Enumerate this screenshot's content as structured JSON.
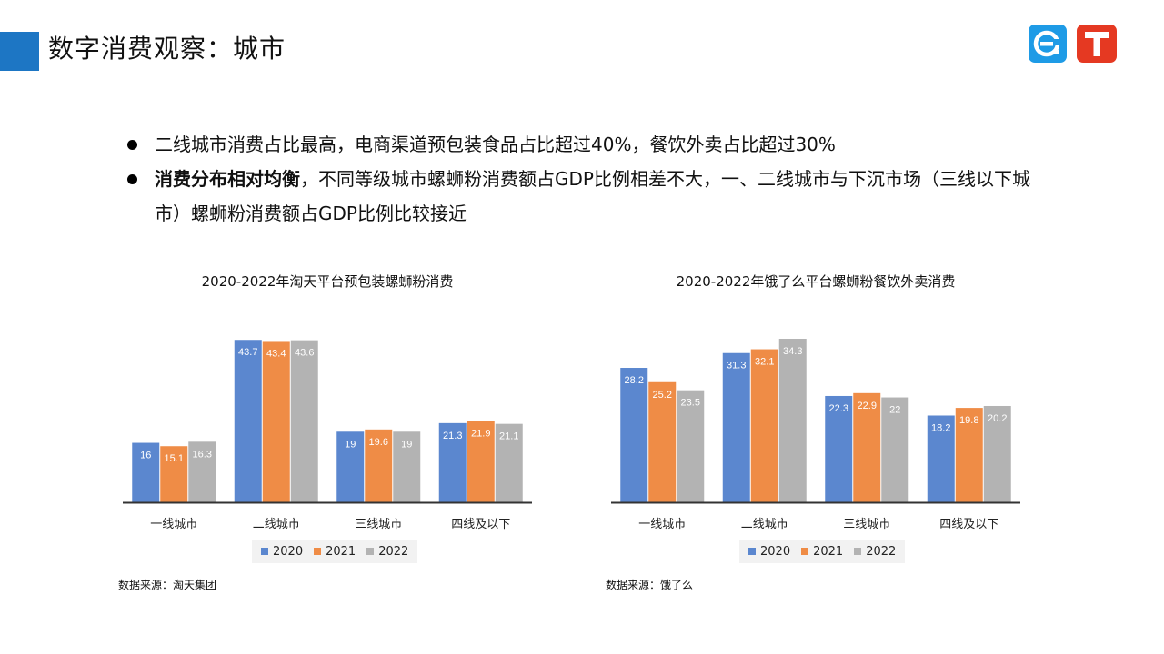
{
  "header": {
    "title": "数字消费观察：城市"
  },
  "bullets": [
    {
      "bold": "",
      "text": "二线城市消费占比最高，电商渠道预包装食品占比超过40%，餐饮外卖占比超过30%"
    },
    {
      "bold": "消费分布相对均衡",
      "text": "，不同等级城市螺蛳粉消费额占GDP比例相差不大，一、二线城市与下沉市场（三线以下城市）螺蛳粉消费额占GDP比例比较接近"
    }
  ],
  "colors": {
    "accent": "#1d76c4",
    "series_2020": "#5b87cf",
    "series_2021": "#ef8c46",
    "series_2022": "#b3b3b3"
  },
  "chart_data": [
    {
      "type": "bar",
      "title": "2020-2022年淘天平台预包装螺蛳粉消费",
      "categories": [
        "一线城市",
        "二线城市",
        "三线城市",
        "四线及以下"
      ],
      "series": [
        {
          "name": "2020",
          "values": [
            16,
            43.7,
            19,
            21.3
          ]
        },
        {
          "name": "2021",
          "values": [
            15.1,
            43.4,
            19.6,
            21.9
          ]
        },
        {
          "name": "2022",
          "values": [
            16.3,
            43.6,
            19,
            21.1
          ]
        }
      ],
      "ylim": [
        0,
        44
      ],
      "legend": "bottom",
      "grid": false,
      "source": "数据来源：淘天集团"
    },
    {
      "type": "bar",
      "title": "2020-2022年饿了么平台螺蛳粉餐饮外卖消费",
      "categories": [
        "一线城市",
        "二线城市",
        "三线城市",
        "四线及以下"
      ],
      "series": [
        {
          "name": "2020",
          "values": [
            28.2,
            31.3,
            22.3,
            18.2
          ]
        },
        {
          "name": "2021",
          "values": [
            25.2,
            32.1,
            22.9,
            19.8
          ]
        },
        {
          "name": "2022",
          "values": [
            23.5,
            34.3,
            22,
            20.2
          ]
        }
      ],
      "ylim": [
        0,
        34.3
      ],
      "legend": "bottom",
      "grid": false,
      "source": "数据来源：饿了么"
    }
  ]
}
